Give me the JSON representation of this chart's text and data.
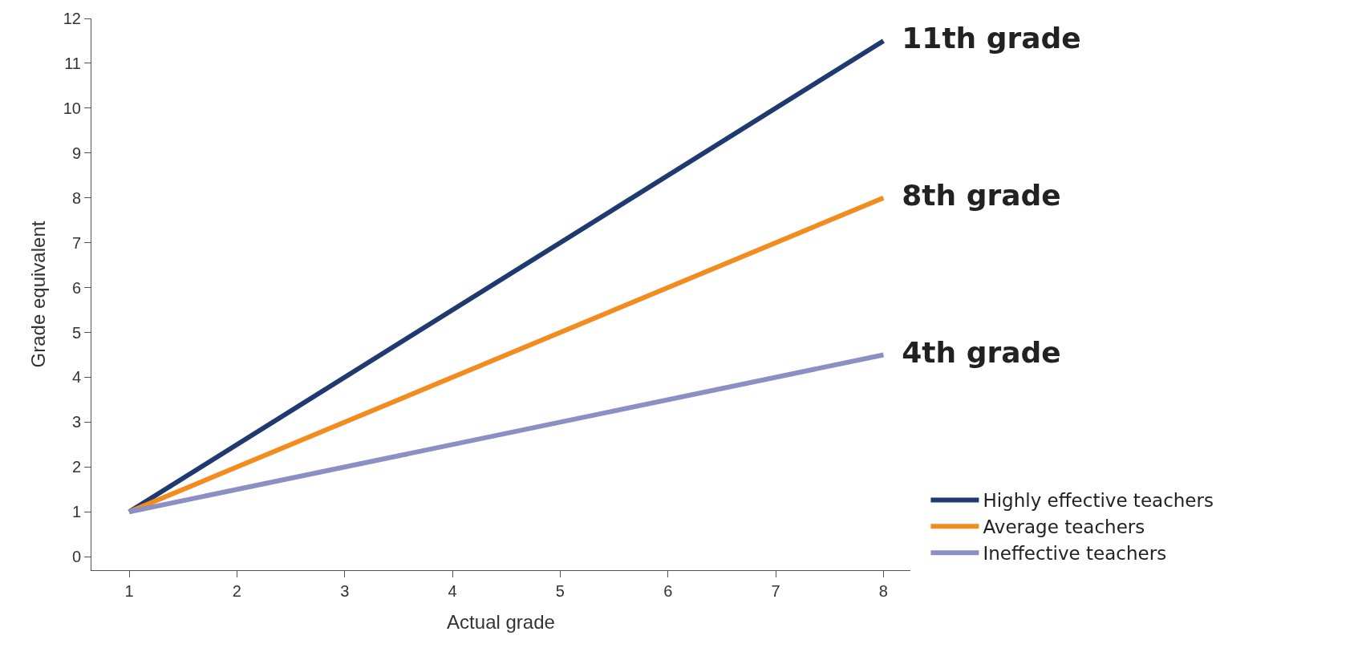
{
  "chart_data": {
    "type": "line",
    "xlabel": "Actual grade",
    "ylabel": "Grade equivalent",
    "x": [
      1,
      8
    ],
    "series": [
      {
        "name": "Highly effective teachers",
        "color": "#1f3a70",
        "values": [
          1,
          11.5
        ]
      },
      {
        "name": "Average teachers",
        "color": "#f28c1e",
        "values": [
          1,
          8
        ]
      },
      {
        "name": "Ineffective teachers",
        "color": "#8a8fc4",
        "values": [
          1,
          4.5
        ]
      }
    ],
    "annotations": [
      "11th grade",
      "8th grade",
      "4th grade"
    ],
    "xlim": [
      0.65,
      8.25
    ],
    "xticks": [
      1,
      2,
      3,
      4,
      5,
      6,
      7,
      8
    ],
    "ylim": [
      -0.3,
      12
    ],
    "yticks": [
      0,
      1,
      2,
      3,
      4,
      5,
      6,
      7,
      8,
      9,
      10,
      11,
      12
    ],
    "grid": false,
    "legend": "bottom right",
    "marker": "none",
    "line_style": "solid"
  }
}
